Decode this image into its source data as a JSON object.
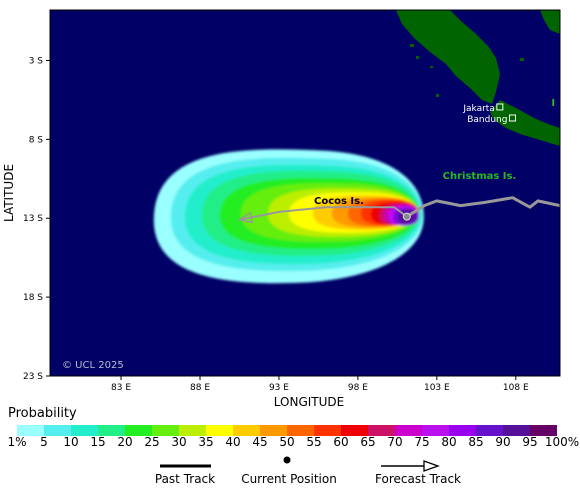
{
  "map": {
    "xlabel": "LONGITUDE",
    "ylabel": "LATITUDE",
    "copyright": "© UCL 2025",
    "lon_ticks": [
      {
        "label": "83 E",
        "lon": 83
      },
      {
        "label": "88 E",
        "lon": 88
      },
      {
        "label": "93 E",
        "lon": 93
      },
      {
        "label": "98 E",
        "lon": 98
      },
      {
        "label": "103 E",
        "lon": 103
      },
      {
        "label": "108 E",
        "lon": 108
      }
    ],
    "lat_ticks": [
      {
        "label": "3 S",
        "lat": -3
      },
      {
        "label": "8 S",
        "lat": -8
      },
      {
        "label": "13 S",
        "lat": -13
      },
      {
        "label": "18 S",
        "lat": -18
      },
      {
        "label": "23 S",
        "lat": -23
      }
    ],
    "extent": {
      "lon_min": 78.5,
      "lon_max": 110.8,
      "lat_min": -23,
      "lat_max": 0.2
    },
    "places": [
      {
        "name": "Cocos Is.",
        "lon": 96.8,
        "lat": -12.1,
        "marker": false,
        "color": "#000000"
      },
      {
        "name": "Christmas Is.",
        "lon": 105.7,
        "lat": -10.5,
        "marker": false,
        "color": "#22bb22"
      },
      {
        "name": "Jakarta",
        "lon": 106.8,
        "lat": -6.2,
        "marker": true,
        "color": "#ffffff"
      },
      {
        "name": "Bandung",
        "lon": 107.6,
        "lat": -6.9,
        "marker": true,
        "color": "#ffffff"
      },
      {
        "name": "I N D O",
        "lon": 111.5,
        "lat": -5.9,
        "marker": false,
        "color": "#22bb22"
      }
    ],
    "current_position": {
      "lon": 101.1,
      "lat": -12.9
    },
    "past_track": [
      [
        101.1,
        -12.9
      ],
      [
        102.2,
        -12.2
      ],
      [
        103.0,
        -11.9
      ],
      [
        104.5,
        -12.2
      ],
      [
        106.0,
        -12.0
      ],
      [
        107.8,
        -11.7
      ],
      [
        108.9,
        -12.3
      ],
      [
        109.4,
        -11.9
      ],
      [
        110.8,
        -12.2
      ]
    ],
    "forecast_track": [
      [
        101.1,
        -12.9
      ],
      [
        100.3,
        -12.3
      ],
      [
        98.5,
        -12.3
      ],
      [
        96.0,
        -12.3
      ],
      [
        93.0,
        -12.6
      ],
      [
        90.5,
        -13.1
      ]
    ],
    "colors": {
      "ocean": "#000066",
      "land": "#006400",
      "past_track": "#999999",
      "forecast_track": "#999999",
      "frame": "#000000"
    }
  },
  "probability": {
    "title": "Probability",
    "levels": [
      "1%",
      "5",
      "10",
      "15",
      "20",
      "25",
      "30",
      "35",
      "40",
      "45",
      "50",
      "55",
      "60",
      "65",
      "70",
      "75",
      "80",
      "85",
      "90",
      "95",
      "100%"
    ],
    "colors": [
      "#99ffff",
      "#55eeee",
      "#22eecc",
      "#22ee88",
      "#22ee22",
      "#66ee11",
      "#bbee00",
      "#ffff00",
      "#ffcc00",
      "#ff9900",
      "#ff6600",
      "#ff3300",
      "#ee0000",
      "#cc1166",
      "#cc00cc",
      "#bb11ee",
      "#9900ee",
      "#6611cc",
      "#551199",
      "#660066"
    ]
  },
  "legend": {
    "past_track": "Past Track",
    "current_position": "Current Position",
    "forecast_track": "Forecast Track"
  }
}
